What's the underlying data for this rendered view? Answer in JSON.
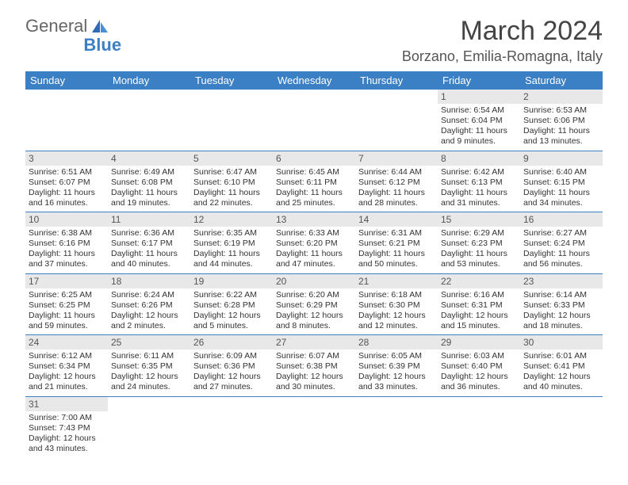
{
  "logo": {
    "text1": "General",
    "text2": "Blue"
  },
  "title": "March 2024",
  "location": "Borzano, Emilia-Romagna, Italy",
  "colors": {
    "header_bg": "#3b7fc4",
    "header_fg": "#ffffff",
    "daynum_bg": "#e8e8e8",
    "text": "#333333",
    "row_divider": "#3b7fc4"
  },
  "daysOfWeek": [
    "Sunday",
    "Monday",
    "Tuesday",
    "Wednesday",
    "Thursday",
    "Friday",
    "Saturday"
  ],
  "weeks": [
    [
      null,
      null,
      null,
      null,
      null,
      {
        "n": "1",
        "sunrise": "Sunrise: 6:54 AM",
        "sunset": "Sunset: 6:04 PM",
        "daylight": "Daylight: 11 hours and 9 minutes."
      },
      {
        "n": "2",
        "sunrise": "Sunrise: 6:53 AM",
        "sunset": "Sunset: 6:06 PM",
        "daylight": "Daylight: 11 hours and 13 minutes."
      }
    ],
    [
      {
        "n": "3",
        "sunrise": "Sunrise: 6:51 AM",
        "sunset": "Sunset: 6:07 PM",
        "daylight": "Daylight: 11 hours and 16 minutes."
      },
      {
        "n": "4",
        "sunrise": "Sunrise: 6:49 AM",
        "sunset": "Sunset: 6:08 PM",
        "daylight": "Daylight: 11 hours and 19 minutes."
      },
      {
        "n": "5",
        "sunrise": "Sunrise: 6:47 AM",
        "sunset": "Sunset: 6:10 PM",
        "daylight": "Daylight: 11 hours and 22 minutes."
      },
      {
        "n": "6",
        "sunrise": "Sunrise: 6:45 AM",
        "sunset": "Sunset: 6:11 PM",
        "daylight": "Daylight: 11 hours and 25 minutes."
      },
      {
        "n": "7",
        "sunrise": "Sunrise: 6:44 AM",
        "sunset": "Sunset: 6:12 PM",
        "daylight": "Daylight: 11 hours and 28 minutes."
      },
      {
        "n": "8",
        "sunrise": "Sunrise: 6:42 AM",
        "sunset": "Sunset: 6:13 PM",
        "daylight": "Daylight: 11 hours and 31 minutes."
      },
      {
        "n": "9",
        "sunrise": "Sunrise: 6:40 AM",
        "sunset": "Sunset: 6:15 PM",
        "daylight": "Daylight: 11 hours and 34 minutes."
      }
    ],
    [
      {
        "n": "10",
        "sunrise": "Sunrise: 6:38 AM",
        "sunset": "Sunset: 6:16 PM",
        "daylight": "Daylight: 11 hours and 37 minutes."
      },
      {
        "n": "11",
        "sunrise": "Sunrise: 6:36 AM",
        "sunset": "Sunset: 6:17 PM",
        "daylight": "Daylight: 11 hours and 40 minutes."
      },
      {
        "n": "12",
        "sunrise": "Sunrise: 6:35 AM",
        "sunset": "Sunset: 6:19 PM",
        "daylight": "Daylight: 11 hours and 44 minutes."
      },
      {
        "n": "13",
        "sunrise": "Sunrise: 6:33 AM",
        "sunset": "Sunset: 6:20 PM",
        "daylight": "Daylight: 11 hours and 47 minutes."
      },
      {
        "n": "14",
        "sunrise": "Sunrise: 6:31 AM",
        "sunset": "Sunset: 6:21 PM",
        "daylight": "Daylight: 11 hours and 50 minutes."
      },
      {
        "n": "15",
        "sunrise": "Sunrise: 6:29 AM",
        "sunset": "Sunset: 6:23 PM",
        "daylight": "Daylight: 11 hours and 53 minutes."
      },
      {
        "n": "16",
        "sunrise": "Sunrise: 6:27 AM",
        "sunset": "Sunset: 6:24 PM",
        "daylight": "Daylight: 11 hours and 56 minutes."
      }
    ],
    [
      {
        "n": "17",
        "sunrise": "Sunrise: 6:25 AM",
        "sunset": "Sunset: 6:25 PM",
        "daylight": "Daylight: 11 hours and 59 minutes."
      },
      {
        "n": "18",
        "sunrise": "Sunrise: 6:24 AM",
        "sunset": "Sunset: 6:26 PM",
        "daylight": "Daylight: 12 hours and 2 minutes."
      },
      {
        "n": "19",
        "sunrise": "Sunrise: 6:22 AM",
        "sunset": "Sunset: 6:28 PM",
        "daylight": "Daylight: 12 hours and 5 minutes."
      },
      {
        "n": "20",
        "sunrise": "Sunrise: 6:20 AM",
        "sunset": "Sunset: 6:29 PM",
        "daylight": "Daylight: 12 hours and 8 minutes."
      },
      {
        "n": "21",
        "sunrise": "Sunrise: 6:18 AM",
        "sunset": "Sunset: 6:30 PM",
        "daylight": "Daylight: 12 hours and 12 minutes."
      },
      {
        "n": "22",
        "sunrise": "Sunrise: 6:16 AM",
        "sunset": "Sunset: 6:31 PM",
        "daylight": "Daylight: 12 hours and 15 minutes."
      },
      {
        "n": "23",
        "sunrise": "Sunrise: 6:14 AM",
        "sunset": "Sunset: 6:33 PM",
        "daylight": "Daylight: 12 hours and 18 minutes."
      }
    ],
    [
      {
        "n": "24",
        "sunrise": "Sunrise: 6:12 AM",
        "sunset": "Sunset: 6:34 PM",
        "daylight": "Daylight: 12 hours and 21 minutes."
      },
      {
        "n": "25",
        "sunrise": "Sunrise: 6:11 AM",
        "sunset": "Sunset: 6:35 PM",
        "daylight": "Daylight: 12 hours and 24 minutes."
      },
      {
        "n": "26",
        "sunrise": "Sunrise: 6:09 AM",
        "sunset": "Sunset: 6:36 PM",
        "daylight": "Daylight: 12 hours and 27 minutes."
      },
      {
        "n": "27",
        "sunrise": "Sunrise: 6:07 AM",
        "sunset": "Sunset: 6:38 PM",
        "daylight": "Daylight: 12 hours and 30 minutes."
      },
      {
        "n": "28",
        "sunrise": "Sunrise: 6:05 AM",
        "sunset": "Sunset: 6:39 PM",
        "daylight": "Daylight: 12 hours and 33 minutes."
      },
      {
        "n": "29",
        "sunrise": "Sunrise: 6:03 AM",
        "sunset": "Sunset: 6:40 PM",
        "daylight": "Daylight: 12 hours and 36 minutes."
      },
      {
        "n": "30",
        "sunrise": "Sunrise: 6:01 AM",
        "sunset": "Sunset: 6:41 PM",
        "daylight": "Daylight: 12 hours and 40 minutes."
      }
    ],
    [
      {
        "n": "31",
        "sunrise": "Sunrise: 7:00 AM",
        "sunset": "Sunset: 7:43 PM",
        "daylight": "Daylight: 12 hours and 43 minutes."
      },
      null,
      null,
      null,
      null,
      null,
      null
    ]
  ]
}
